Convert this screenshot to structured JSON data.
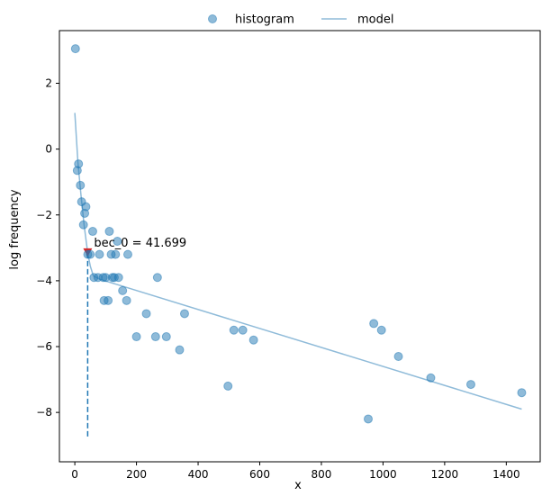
{
  "chart_data": {
    "type": "scatter",
    "xlabel": "x",
    "ylabel": "log frequency",
    "xlim": [
      -50,
      1510
    ],
    "ylim": [
      -9.5,
      3.6
    ],
    "xticks": [
      0,
      200,
      400,
      600,
      800,
      1000,
      1200,
      1400
    ],
    "yticks": [
      2,
      0,
      -2,
      -4,
      -6,
      -8
    ],
    "xtick_labels": [
      "0",
      "200",
      "400",
      "600",
      "800",
      "1000",
      "1200",
      "1400"
    ],
    "ytick_labels": [
      "2",
      "0",
      "−2",
      "−4",
      "−6",
      "−8"
    ],
    "legend": {
      "placement": "top-center",
      "entries": [
        {
          "label": "histogram",
          "kind": "marker"
        },
        {
          "label": "model",
          "kind": "line"
        }
      ]
    },
    "colors": {
      "histogram": "#1f77b4",
      "model": "#1f77b4",
      "threshold_line": "#1f77b4",
      "threshold_marker": "#d62728"
    },
    "series": [
      {
        "name": "histogram",
        "kind": "scatter",
        "alpha": 0.5,
        "points": [
          [
            2,
            3.05
          ],
          [
            8,
            -0.65
          ],
          [
            12,
            -0.45
          ],
          [
            18,
            -1.1
          ],
          [
            22,
            -1.6
          ],
          [
            28,
            -2.3
          ],
          [
            32,
            -1.95
          ],
          [
            36,
            -1.75
          ],
          [
            42,
            -3.2
          ],
          [
            50,
            -3.2
          ],
          [
            58,
            -2.5
          ],
          [
            62,
            -3.9
          ],
          [
            75,
            -3.9
          ],
          [
            80,
            -3.2
          ],
          [
            92,
            -3.9
          ],
          [
            95,
            -4.6
          ],
          [
            100,
            -3.9
          ],
          [
            108,
            -4.6
          ],
          [
            112,
            -2.5
          ],
          [
            118,
            -3.2
          ],
          [
            122,
            -3.9
          ],
          [
            128,
            -3.9
          ],
          [
            132,
            -3.2
          ],
          [
            138,
            -2.8
          ],
          [
            142,
            -3.9
          ],
          [
            155,
            -4.3
          ],
          [
            168,
            -4.6
          ],
          [
            172,
            -3.2
          ],
          [
            200,
            -5.7
          ],
          [
            232,
            -5.0
          ],
          [
            262,
            -5.7
          ],
          [
            268,
            -3.9
          ],
          [
            297,
            -5.7
          ],
          [
            340,
            -6.1
          ],
          [
            356,
            -5.0
          ],
          [
            497,
            -7.2
          ],
          [
            516,
            -5.5
          ],
          [
            545,
            -5.5
          ],
          [
            580,
            -5.8
          ],
          [
            952,
            -8.2
          ],
          [
            970,
            -5.3
          ],
          [
            995,
            -5.5
          ],
          [
            1050,
            -6.3
          ],
          [
            1155,
            -6.95
          ],
          [
            1285,
            -7.15
          ],
          [
            1450,
            -7.4
          ]
        ]
      },
      {
        "name": "model",
        "kind": "line",
        "alpha": 0.5,
        "points": [
          [
            0,
            1.1
          ],
          [
            10,
            -0.4
          ],
          [
            20,
            -1.4
          ],
          [
            30,
            -2.3
          ],
          [
            41.699,
            -3.15
          ],
          [
            50,
            -3.55
          ],
          [
            60,
            -3.85
          ],
          [
            80,
            -3.95
          ],
          [
            1450,
            -7.9
          ]
        ]
      }
    ],
    "threshold": {
      "x": 41.699,
      "marker_y": -3.15,
      "line_from_y": -3.15,
      "line_to_y": -8.8
    },
    "annotation": {
      "text": "bec_0 = 41.699",
      "x": 41.699,
      "y": -3.15
    }
  }
}
